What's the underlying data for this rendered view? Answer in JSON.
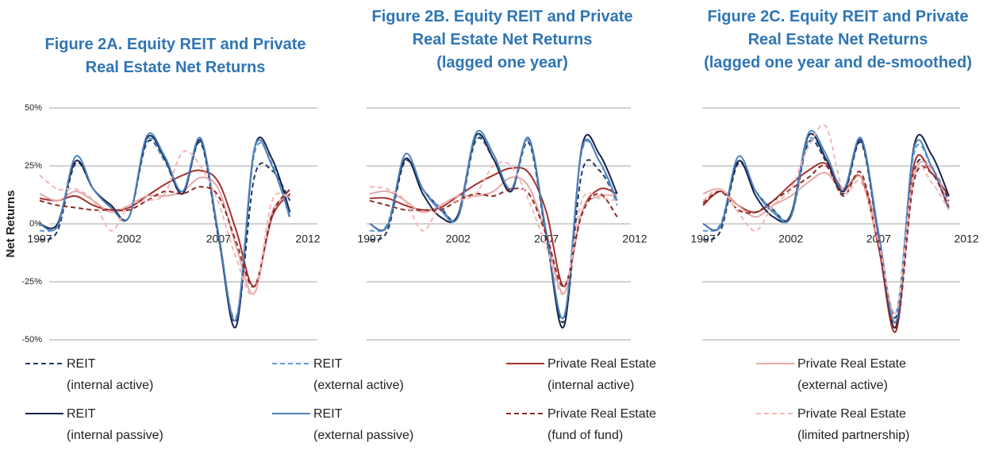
{
  "chart_data": [
    {
      "type": "line",
      "title": "Figure 2A. Equity REIT and Private\nReal Estate Net Returns",
      "ylabel": "Net Returns",
      "x": [
        1997,
        1998,
        1999,
        2000,
        2001,
        2002,
        2003,
        2004,
        2005,
        2006,
        2007,
        2008,
        2009,
        2010,
        2011
      ],
      "xlim": [
        1997,
        2012
      ],
      "xticks": [
        1997,
        2002,
        2007,
        2012
      ],
      "ylim": [
        -50,
        50
      ],
      "yticks": [
        {
          "value": -50,
          "label": "-50%"
        },
        {
          "value": -25,
          "label": "-25%"
        },
        {
          "value": 0,
          "label": "0%"
        },
        {
          "value": 25,
          "label": "25%"
        },
        {
          "value": 50,
          "label": "50%"
        }
      ],
      "grid": true,
      "series": [
        {
          "name": "REIT\n(internal active)",
          "color": "#1f3864",
          "dash": true,
          "values": [
            -7,
            -3,
            26,
            15,
            7,
            3,
            35,
            27,
            13,
            35,
            -6,
            -42,
            20,
            23,
            10
          ]
        },
        {
          "name": "REIT\n(external active)",
          "color": "#5b9bd5",
          "dash": true,
          "values": [
            -3,
            0,
            27,
            15,
            7,
            3,
            36,
            27,
            13,
            36,
            -5,
            -40,
            30,
            26,
            2
          ]
        },
        {
          "name": "Private Real Estate\n(internal active)",
          "color": "#a4312f",
          "dash": false,
          "values": [
            11,
            10,
            12,
            8,
            6,
            7,
            12,
            17,
            21,
            23,
            18,
            -3,
            -27,
            3,
            13
          ]
        },
        {
          "name": "Private Real Estate\n(external active)",
          "color": "#e6a8a8",
          "dash": false,
          "values": [
            13,
            10,
            14,
            10,
            5,
            8,
            12,
            12,
            14,
            20,
            15,
            -10,
            -30,
            5,
            12
          ]
        },
        {
          "name": "REIT\n(internal passive)",
          "color": "#17244a",
          "dash": false,
          "values": [
            0,
            0,
            27,
            15,
            8,
            3,
            37,
            28,
            13,
            36,
            -5,
            -44,
            32,
            28,
            5
          ]
        },
        {
          "name": "REIT\n(external passive)",
          "color": "#4f81bd",
          "dash": false,
          "values": [
            0,
            -1,
            29,
            15,
            7,
            3,
            38,
            29,
            14,
            37,
            -4,
            -41,
            32,
            25,
            3
          ]
        },
        {
          "name": "Private Real Estate\n(fund of fund)",
          "color": "#8c2a26",
          "dash": true,
          "values": [
            10,
            8,
            7,
            6,
            6,
            6,
            10,
            14,
            13,
            16,
            12,
            -8,
            -27,
            4,
            15
          ]
        },
        {
          "name": "Private Real Estate\n(limited partnership)",
          "color": "#f4b6b6",
          "dash": true,
          "values": [
            21,
            15,
            15,
            10,
            -3,
            8,
            10,
            13,
            31,
            25,
            9,
            -15,
            -30,
            10,
            11
          ]
        }
      ]
    },
    {
      "type": "line",
      "title": "Figure 2B. Equity REIT and Private\nReal Estate Net Returns\n(lagged one year)",
      "x": [
        1997,
        1998,
        1999,
        2000,
        2001,
        2002,
        2003,
        2004,
        2005,
        2006,
        2007,
        2008,
        2009,
        2010,
        2011
      ],
      "xlim": [
        1997,
        2012
      ],
      "xticks": [
        1997,
        2002,
        2007,
        2012
      ],
      "ylim": [
        -50,
        50
      ],
      "yticks": [
        -50,
        -25,
        0,
        25,
        50
      ],
      "grid": true,
      "series": [
        {
          "color": "#1f3864",
          "dash": true,
          "values": [
            -7,
            -3,
            27,
            15,
            7,
            3,
            36,
            28,
            14,
            35,
            -6,
            -42,
            22,
            23,
            10
          ]
        },
        {
          "color": "#5b9bd5",
          "dash": true,
          "values": [
            -3,
            0,
            28,
            15,
            7,
            3,
            37,
            28,
            14,
            36,
            -5,
            -40,
            31,
            27,
            8
          ]
        },
        {
          "color": "#a4312f",
          "dash": false,
          "values": [
            11,
            11,
            8,
            6,
            7,
            12,
            17,
            21,
            24,
            22,
            5,
            -27,
            5,
            15,
            13
          ]
        },
        {
          "color": "#e6a8a8",
          "dash": false,
          "values": [
            13,
            14,
            10,
            5,
            8,
            12,
            12,
            14,
            20,
            16,
            -5,
            -30,
            5,
            12,
            12
          ]
        },
        {
          "color": "#17244a",
          "dash": false,
          "values": [
            0,
            -1,
            28,
            13,
            3,
            4,
            38,
            28,
            14,
            37,
            -5,
            -44,
            33,
            30,
            13
          ]
        },
        {
          "color": "#4f81bd",
          "dash": false,
          "values": [
            0,
            -1,
            30,
            15,
            6,
            3,
            39,
            30,
            15,
            37,
            -4,
            -40,
            32,
            27,
            10
          ]
        },
        {
          "color": "#8c2a26",
          "dash": true,
          "values": [
            10,
            8,
            6,
            6,
            6,
            10,
            13,
            12,
            15,
            13,
            -5,
            -27,
            4,
            13,
            3
          ]
        },
        {
          "color": "#f4b6b6",
          "dash": true,
          "values": [
            16,
            15,
            10,
            -3,
            8,
            10,
            13,
            25,
            25,
            10,
            -10,
            -30,
            10,
            11,
            10
          ]
        }
      ]
    },
    {
      "type": "line",
      "title": "Figure 2C. Equity REIT and Private\nReal Estate Net Returns\n(lagged one year and de-smoothed)",
      "x": [
        1997,
        1998,
        1999,
        2000,
        2001,
        2002,
        2003,
        2004,
        2005,
        2006,
        2007,
        2008,
        2009,
        2010,
        2011
      ],
      "xlim": [
        1997,
        2012
      ],
      "xticks": [
        1997,
        2002,
        2007,
        2012
      ],
      "ylim": [
        -50,
        50
      ],
      "yticks": [
        -50,
        -25,
        0,
        25,
        50
      ],
      "grid": true,
      "series": [
        {
          "color": "#1f3864",
          "dash": true,
          "values": [
            -7,
            -3,
            26,
            14,
            6,
            3,
            35,
            27,
            13,
            35,
            -6,
            -40,
            22,
            24,
            10
          ]
        },
        {
          "color": "#5b9bd5",
          "dash": true,
          "values": [
            -3,
            0,
            27,
            14,
            6,
            3,
            36,
            28,
            14,
            36,
            -5,
            -38,
            30,
            25,
            8
          ]
        },
        {
          "color": "#a4312f",
          "dash": false,
          "values": [
            8,
            14,
            8,
            5,
            10,
            17,
            23,
            26,
            15,
            20,
            -10,
            -46,
            25,
            22,
            12
          ]
        },
        {
          "color": "#e6a8a8",
          "dash": false,
          "values": [
            13,
            15,
            8,
            3,
            8,
            12,
            18,
            22,
            14,
            20,
            -5,
            -42,
            20,
            24,
            8
          ]
        },
        {
          "color": "#17244a",
          "dash": false,
          "values": [
            0,
            -1,
            27,
            12,
            3,
            4,
            38,
            28,
            14,
            36,
            -5,
            -44,
            33,
            30,
            12
          ]
        },
        {
          "color": "#4f81bd",
          "dash": false,
          "values": [
            0,
            -1,
            29,
            14,
            5,
            3,
            39,
            30,
            15,
            37,
            -4,
            -42,
            32,
            25,
            6
          ]
        },
        {
          "color": "#8c2a26",
          "dash": true,
          "values": [
            9,
            14,
            6,
            5,
            10,
            15,
            20,
            25,
            12,
            22,
            -10,
            -45,
            18,
            22,
            7
          ]
        },
        {
          "color": "#f4b6b6",
          "dash": true,
          "values": [
            10,
            15,
            5,
            -3,
            8,
            15,
            33,
            42,
            14,
            18,
            -8,
            -38,
            22,
            18,
            6
          ]
        }
      ]
    }
  ]
}
